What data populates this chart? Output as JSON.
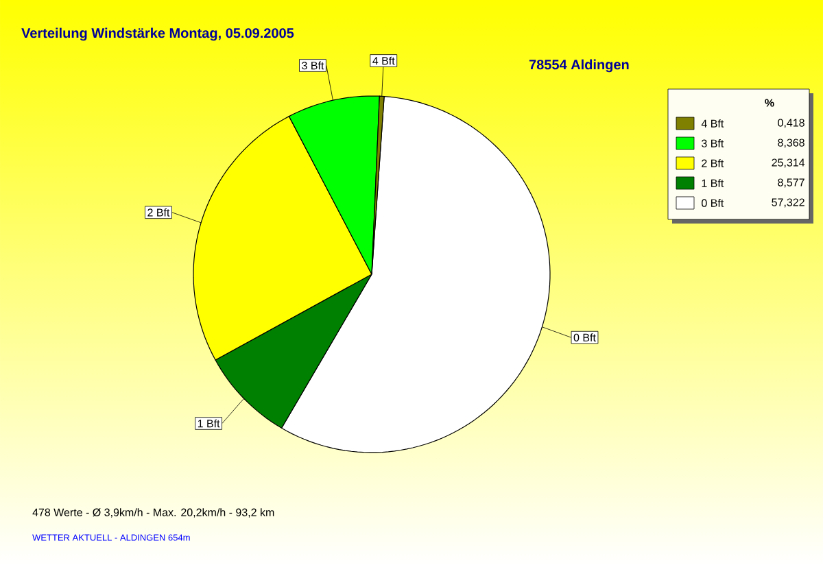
{
  "chart_data": {
    "type": "pie",
    "title": "Verteilung Windstärke  Montag, 05.09.2005",
    "subtitle": "78554 Aldingen",
    "legend_title": "%",
    "legend": "top right",
    "categories": [
      "0 Bft",
      "1 Bft",
      "2 Bft",
      "3 Bft",
      "4 Bft"
    ],
    "values": [
      57.322,
      8.577,
      25.314,
      8.368,
      0.418
    ],
    "value_labels": [
      "57,322",
      "8,577",
      "25,314",
      "8,368",
      "0,418"
    ],
    "colors": [
      "#ffffff",
      "#008000",
      "#ffff00",
      "#00ff00",
      "#808000"
    ],
    "annotations": [
      "478 Werte   -   Ø 3,9km/h  -  Max. 20,2km/h   -   93,2 km",
      "WETTER AKTUELL - ALDINGEN 654m"
    ]
  }
}
